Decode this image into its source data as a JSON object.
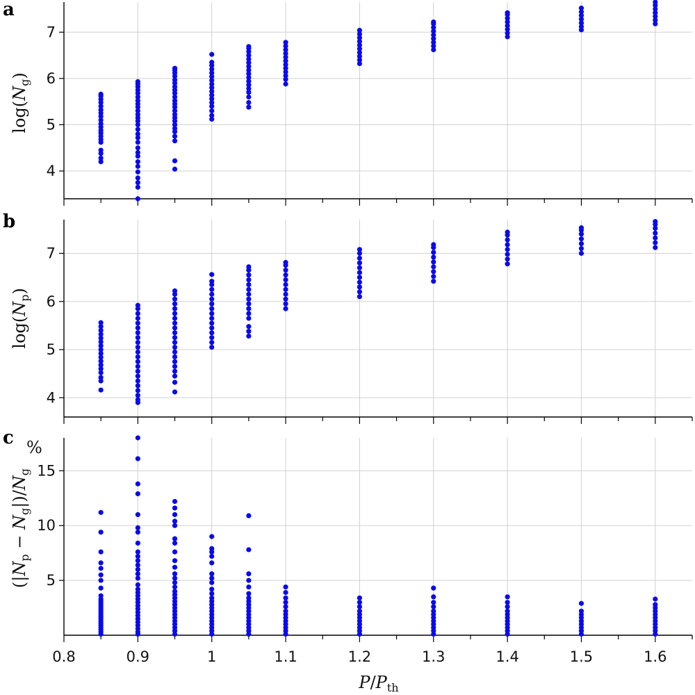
{
  "figure": {
    "marker_color": "#0a0af0",
    "xlabel": {
      "P": "P",
      "slash": "/",
      "Pth_main": "P",
      "Pth_sub": "th"
    },
    "xlim": [
      0.8,
      1.65
    ],
    "x_ticks": [
      0.8,
      0.9,
      1.0,
      1.1,
      1.2,
      1.3,
      1.4,
      1.5,
      1.6
    ],
    "x_tick_labels": [
      "0.8",
      "0.9",
      "1",
      "1.1",
      "1.2",
      "1.3",
      "1.4",
      "1.5",
      "1.6"
    ]
  },
  "chart_data": [
    {
      "type": "scatter",
      "panel": "a",
      "ylabel": {
        "prefix": "log(",
        "var": "N",
        "sub": "g",
        "suffix": ")"
      },
      "ylim": [
        3.4,
        7.65
      ],
      "y_ticks": [
        4,
        5,
        6,
        7
      ],
      "y_tick_labels": [
        "4",
        "5",
        "6",
        "7"
      ],
      "grid": true,
      "points": [
        {
          "x": 0.85,
          "y": [
            4.2,
            4.28,
            4.38,
            4.45,
            4.62,
            4.68,
            4.75,
            4.82,
            4.88,
            4.95,
            5.02,
            5.1,
            5.18,
            5.25,
            5.32,
            5.4,
            5.48,
            5.55,
            5.62,
            5.66
          ]
        },
        {
          "x": 0.9,
          "y": [
            3.4,
            3.65,
            3.75,
            3.85,
            3.98,
            4.1,
            4.2,
            4.32,
            4.4,
            4.5,
            4.62,
            4.72,
            4.8,
            4.9,
            5.0,
            5.08,
            5.15,
            5.22,
            5.3,
            5.38,
            5.45,
            5.52,
            5.6,
            5.68,
            5.75,
            5.82,
            5.88,
            5.93
          ]
        },
        {
          "x": 0.95,
          "y": [
            4.04,
            4.22,
            4.65,
            4.75,
            4.85,
            4.92,
            5.0,
            5.08,
            5.15,
            5.22,
            5.3,
            5.38,
            5.45,
            5.52,
            5.6,
            5.68,
            5.75,
            5.82,
            5.9,
            5.97,
            6.05,
            6.12,
            6.18,
            6.22
          ]
        },
        {
          "x": 1.0,
          "y": [
            5.12,
            5.2,
            5.3,
            5.4,
            5.48,
            5.56,
            5.64,
            5.72,
            5.8,
            5.88,
            5.96,
            6.04,
            6.12,
            6.2,
            6.28,
            6.35,
            6.52
          ]
        },
        {
          "x": 1.05,
          "y": [
            5.38,
            5.48,
            5.6,
            5.7,
            5.78,
            5.86,
            5.94,
            6.02,
            6.1,
            6.18,
            6.26,
            6.34,
            6.42,
            6.5,
            6.58,
            6.65,
            6.69
          ]
        },
        {
          "x": 1.1,
          "y": [
            5.88,
            5.98,
            6.06,
            6.14,
            6.22,
            6.3,
            6.38,
            6.46,
            6.54,
            6.62,
            6.7,
            6.78
          ]
        },
        {
          "x": 1.2,
          "y": [
            6.32,
            6.4,
            6.48,
            6.56,
            6.64,
            6.72,
            6.8,
            6.88,
            6.96,
            7.04
          ]
        },
        {
          "x": 1.3,
          "y": [
            6.62,
            6.7,
            6.78,
            6.86,
            6.94,
            7.02,
            7.1,
            7.18,
            7.22
          ]
        },
        {
          "x": 1.4,
          "y": [
            6.9,
            6.98,
            7.06,
            7.14,
            7.22,
            7.3,
            7.38,
            7.42
          ]
        },
        {
          "x": 1.5,
          "y": [
            7.05,
            7.12,
            7.2,
            7.28,
            7.36,
            7.44,
            7.52
          ]
        },
        {
          "x": 1.6,
          "y": [
            7.18,
            7.26,
            7.34,
            7.42,
            7.5,
            7.58,
            7.65
          ]
        }
      ]
    },
    {
      "type": "scatter",
      "panel": "b",
      "ylabel": {
        "prefix": "log(",
        "var": "N",
        "sub": "p",
        "suffix": ")"
      },
      "ylim": [
        3.6,
        7.7
      ],
      "y_ticks": [
        4,
        5,
        6,
        7
      ],
      "y_tick_labels": [
        "4",
        "5",
        "6",
        "7"
      ],
      "grid": true,
      "points": [
        {
          "x": 0.85,
          "y": [
            4.16,
            4.35,
            4.42,
            4.52,
            4.6,
            4.68,
            4.76,
            4.84,
            4.92,
            5.0,
            5.08,
            5.16,
            5.24,
            5.32,
            5.4,
            5.48,
            5.56
          ]
        },
        {
          "x": 0.9,
          "y": [
            3.58,
            3.9,
            3.96,
            4.05,
            4.15,
            4.25,
            4.35,
            4.45,
            4.55,
            4.65,
            4.75,
            4.85,
            4.95,
            5.05,
            5.15,
            5.25,
            5.35,
            5.45,
            5.55,
            5.65,
            5.75,
            5.85,
            5.92
          ]
        },
        {
          "x": 0.95,
          "y": [
            4.12,
            4.32,
            4.45,
            4.55,
            4.65,
            4.75,
            4.85,
            4.95,
            5.05,
            5.15,
            5.25,
            5.35,
            5.45,
            5.55,
            5.65,
            5.75,
            5.85,
            5.95,
            6.05,
            6.15,
            6.22
          ]
        },
        {
          "x": 1.0,
          "y": [
            5.05,
            5.15,
            5.25,
            5.35,
            5.45,
            5.55,
            5.65,
            5.75,
            5.85,
            5.95,
            6.05,
            6.15,
            6.25,
            6.35,
            6.42,
            6.56
          ]
        },
        {
          "x": 1.05,
          "y": [
            5.28,
            5.38,
            5.48,
            5.65,
            5.75,
            5.85,
            5.95,
            6.05,
            6.15,
            6.25,
            6.35,
            6.45,
            6.55,
            6.65,
            6.72
          ]
        },
        {
          "x": 1.1,
          "y": [
            5.85,
            5.95,
            6.05,
            6.15,
            6.25,
            6.35,
            6.45,
            6.55,
            6.65,
            6.75,
            6.81
          ]
        },
        {
          "x": 1.2,
          "y": [
            6.1,
            6.2,
            6.3,
            6.4,
            6.5,
            6.6,
            6.7,
            6.8,
            6.9,
            7.0,
            7.08
          ]
        },
        {
          "x": 1.3,
          "y": [
            6.42,
            6.52,
            6.62,
            6.72,
            6.82,
            6.92,
            7.02,
            7.12,
            7.18
          ]
        },
        {
          "x": 1.4,
          "y": [
            6.78,
            6.88,
            6.98,
            7.08,
            7.18,
            7.28,
            7.38,
            7.44
          ]
        },
        {
          "x": 1.5,
          "y": [
            7.0,
            7.1,
            7.2,
            7.3,
            7.4,
            7.48,
            7.53
          ]
        },
        {
          "x": 1.6,
          "y": [
            7.12,
            7.22,
            7.32,
            7.42,
            7.52,
            7.6,
            7.66
          ]
        }
      ]
    },
    {
      "type": "scatter",
      "panel": "c",
      "ylabel": {
        "text": "(|N_p − N_g|)/N_g",
        "open": "(|",
        "v1": "N",
        "s1": "p",
        "minus": " − ",
        "v2": "N",
        "s2": "g",
        "mid": "|)/",
        "v3": "N",
        "s3": "g"
      },
      "unit": "%",
      "ylim": [
        0,
        18
      ],
      "y_ticks": [
        5,
        10,
        15
      ],
      "y_tick_labels": [
        "5",
        "10",
        "15"
      ],
      "grid": true,
      "points": [
        {
          "x": 0.85,
          "y": [
            0.1,
            0.3,
            0.5,
            0.7,
            0.9,
            1.1,
            1.3,
            1.5,
            1.7,
            1.9,
            2.1,
            2.3,
            2.5,
            2.7,
            2.9,
            3.1,
            3.3,
            3.6,
            4.3,
            5.0,
            5.5,
            6.1,
            6.6,
            7.6,
            9.4,
            11.2
          ]
        },
        {
          "x": 0.9,
          "y": [
            0.1,
            0.3,
            0.6,
            0.9,
            1.2,
            1.5,
            1.8,
            2.1,
            2.4,
            2.7,
            3.0,
            3.3,
            3.6,
            3.9,
            4.2,
            4.6,
            5.2,
            5.6,
            6.0,
            6.4,
            6.8,
            7.2,
            7.6,
            8.4,
            9.4,
            9.8,
            11.0,
            12.9,
            13.8,
            16.1,
            18.0
          ]
        },
        {
          "x": 0.95,
          "y": [
            0.1,
            0.4,
            0.7,
            1.0,
            1.3,
            1.6,
            1.9,
            2.2,
            2.5,
            2.8,
            3.1,
            3.4,
            3.7,
            4.0,
            4.4,
            4.8,
            5.2,
            5.6,
            6.2,
            6.8,
            7.6,
            8.4,
            8.8,
            10.0,
            10.4,
            11.0,
            11.6,
            12.2
          ]
        },
        {
          "x": 1.0,
          "y": [
            0.1,
            0.4,
            0.7,
            1.0,
            1.3,
            1.6,
            1.9,
            2.2,
            2.5,
            2.8,
            3.1,
            3.4,
            3.8,
            4.2,
            4.8,
            5.2,
            5.6,
            6.6,
            7.2,
            7.6,
            7.9,
            9.0
          ]
        },
        {
          "x": 1.05,
          "y": [
            0.1,
            0.4,
            0.7,
            1.0,
            1.3,
            1.6,
            1.9,
            2.2,
            2.5,
            2.8,
            3.1,
            3.4,
            3.8,
            4.4,
            5.0,
            5.6,
            7.8,
            10.9
          ]
        },
        {
          "x": 1.1,
          "y": [
            0.1,
            0.4,
            0.7,
            1.0,
            1.3,
            1.6,
            1.9,
            2.2,
            2.6,
            3.0,
            3.4,
            3.9,
            4.4
          ]
        },
        {
          "x": 1.2,
          "y": [
            0.1,
            0.4,
            0.7,
            1.0,
            1.3,
            1.6,
            1.9,
            2.2,
            2.6,
            3.0,
            3.4
          ]
        },
        {
          "x": 1.3,
          "y": [
            0.1,
            0.4,
            0.7,
            1.0,
            1.3,
            1.6,
            1.9,
            2.2,
            2.6,
            3.0,
            3.5,
            4.3
          ]
        },
        {
          "x": 1.4,
          "y": [
            0.1,
            0.4,
            0.7,
            1.0,
            1.3,
            1.6,
            1.9,
            2.2,
            2.6,
            3.0,
            3.5
          ]
        },
        {
          "x": 1.5,
          "y": [
            0.1,
            0.4,
            0.7,
            1.0,
            1.3,
            1.6,
            1.9,
            2.2,
            2.9
          ]
        },
        {
          "x": 1.6,
          "y": [
            0.1,
            0.4,
            0.7,
            1.0,
            1.3,
            1.6,
            1.9,
            2.2,
            2.5,
            2.8,
            3.3
          ]
        }
      ]
    }
  ]
}
